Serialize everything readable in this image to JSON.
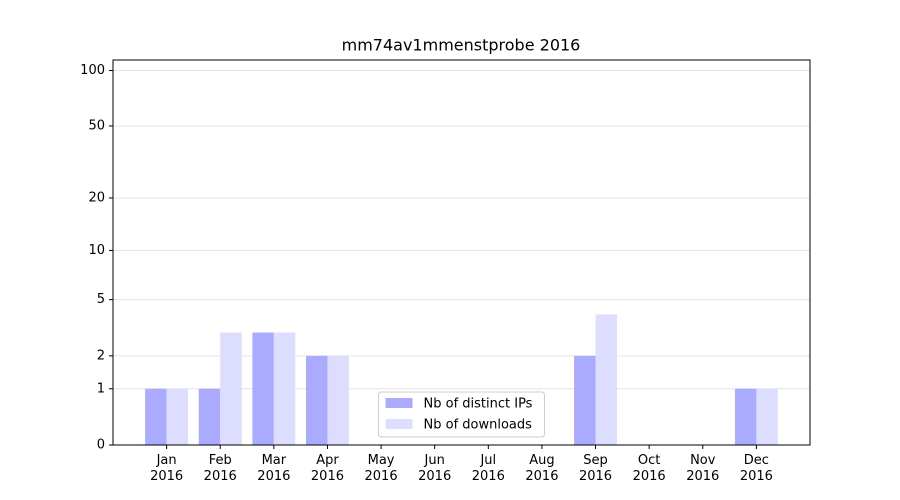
{
  "chart_data": {
    "type": "bar",
    "title": "mm74av1mmenstprobe 2016",
    "categories": [
      "Jan\n2016",
      "Feb\n2016",
      "Mar\n2016",
      "Apr\n2016",
      "May\n2016",
      "Jun\n2016",
      "Jul\n2016",
      "Aug\n2016",
      "Sep\n2016",
      "Oct\n2016",
      "Nov\n2016",
      "Dec\n2016"
    ],
    "series": [
      {
        "name": "Nb of distinct IPs",
        "color": "#aaaaff",
        "values": [
          1,
          1,
          3,
          2,
          0,
          0,
          0,
          0,
          2,
          0,
          0,
          1
        ]
      },
      {
        "name": "Nb of downloads",
        "color": "#ddddff",
        "values": [
          1,
          3,
          3,
          2,
          0,
          0,
          0,
          0,
          4,
          0,
          0,
          1
        ]
      }
    ],
    "yscale": "log1p",
    "ylim": [
      0,
      114
    ],
    "yticks": [
      0,
      1,
      2,
      5,
      10,
      20,
      50,
      100
    ],
    "grid": true,
    "legend": "lower center"
  }
}
